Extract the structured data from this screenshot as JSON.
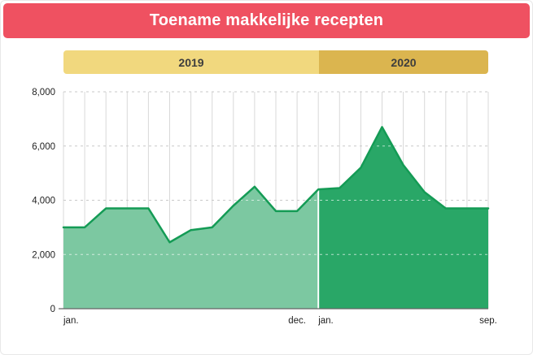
{
  "header": {
    "title": "Toename makkelijke recepten",
    "bg": "#EF5161",
    "text_color": "#ffffff"
  },
  "year_bands": [
    {
      "label": "2019",
      "color": "#F1D87E"
    },
    {
      "label": "2020",
      "color": "#DBB54F"
    }
  ],
  "chart_data": {
    "type": "area",
    "title": "Toename makkelijke recepten",
    "months": [
      "2019-01",
      "2019-02",
      "2019-03",
      "2019-04",
      "2019-05",
      "2019-06",
      "2019-07",
      "2019-08",
      "2019-09",
      "2019-10",
      "2019-11",
      "2019-12",
      "2020-01",
      "2020-02",
      "2020-03",
      "2020-04",
      "2020-05",
      "2020-06",
      "2020-07",
      "2020-08",
      "2020-09"
    ],
    "values": [
      3000,
      3000,
      3700,
      3700,
      3700,
      2450,
      2900,
      3000,
      3800,
      4500,
      3600,
      3600,
      4400,
      4450,
      5200,
      6700,
      5300,
      4300,
      3700,
      3700,
      3700
    ],
    "segments": [
      {
        "name": "2019",
        "start": 0,
        "end": 12,
        "fill": "#7CC8A1"
      },
      {
        "name": "2020",
        "start": 12,
        "end": 20,
        "fill": "#29A767"
      }
    ],
    "ylim": [
      0,
      8000
    ],
    "yticks": [
      0,
      2000,
      4000,
      6000,
      8000
    ],
    "ytick_labels": [
      "0",
      "2,000",
      "4,000",
      "6,000",
      "8,000"
    ],
    "x_labels": [
      {
        "index": 0,
        "text": "jan.",
        "align": "start"
      },
      {
        "index": 11,
        "text": "dec.",
        "align": "middle"
      },
      {
        "index": 12,
        "text": "jan.",
        "align": "start"
      },
      {
        "index": 20,
        "text": "sep.",
        "align": "middle"
      }
    ],
    "xlabel": "",
    "ylabel": "",
    "grid": true,
    "legend": "none",
    "line_color": "#149B55",
    "grid_color": "#D8D8D8",
    "axis_color": "#666666",
    "label_color": "#222222"
  }
}
